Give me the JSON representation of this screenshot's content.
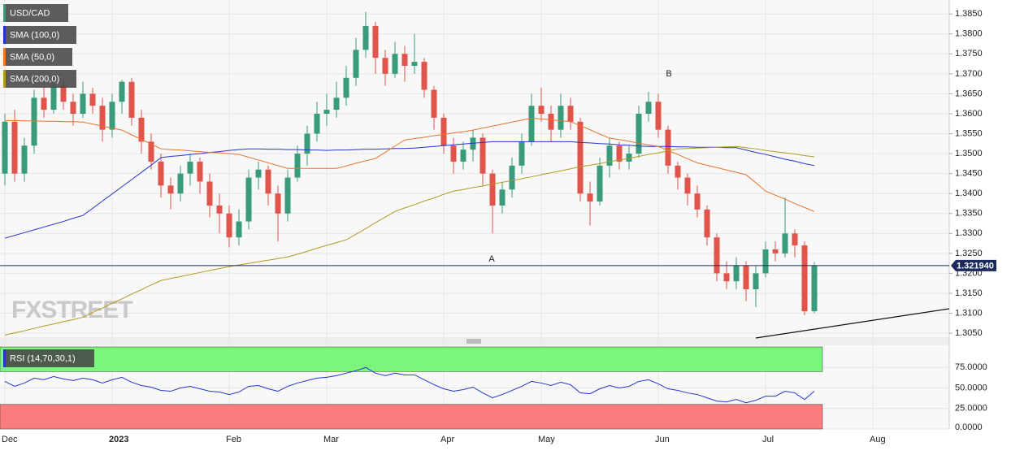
{
  "chart_data": {
    "type": "candlestick",
    "title": "USD/CAD",
    "watermark": "FXSTREET",
    "annotations": [
      "A",
      "B"
    ],
    "up_color": "#3a9a7c",
    "down_color": "#e0544c",
    "categories": [
      "Dec",
      null,
      null,
      null,
      null,
      null,
      null,
      null,
      null,
      null,
      null,
      "2023",
      null,
      null,
      null,
      null,
      null,
      null,
      null,
      null,
      null,
      null,
      null,
      "Feb",
      null,
      null,
      null,
      null,
      null,
      null,
      null,
      null,
      null,
      "Mar",
      null,
      null,
      null,
      null,
      null,
      null,
      null,
      null,
      null,
      null,
      null,
      "Apr",
      null,
      null,
      null,
      null,
      null,
      null,
      null,
      null,
      null,
      "May",
      null,
      null,
      null,
      null,
      null,
      null,
      null,
      null,
      null,
      null,
      null,
      "Jun",
      null,
      null,
      null,
      null,
      null,
      null,
      null,
      null,
      null,
      null,
      "Jul",
      null,
      null,
      null,
      null,
      null,
      null,
      null,
      null,
      null,
      null,
      "Aug",
      null,
      null,
      null,
      null,
      null,
      null,
      null
    ],
    "open": [
      1.345,
      1.358,
      1.345,
      1.352,
      1.364,
      1.361,
      1.367,
      1.363,
      1.36,
      1.365,
      1.362,
      1.356,
      1.363,
      1.368,
      1.359,
      1.353,
      1.348,
      1.342,
      1.34,
      1.345,
      1.348,
      1.343,
      1.337,
      1.335,
      1.329,
      1.333,
      1.344,
      1.346,
      1.34,
      1.335,
      1.344,
      1.35,
      1.355,
      1.36,
      1.361,
      1.364,
      1.369,
      1.376,
      1.382,
      1.374,
      1.37,
      1.375,
      1.372,
      1.373,
      1.366,
      1.359,
      1.352,
      1.348,
      1.351,
      1.354,
      1.345,
      1.337,
      1.341,
      1.347,
      1.353,
      1.362,
      1.36,
      1.356,
      1.362,
      1.358,
      1.34,
      1.338,
      1.347,
      1.352,
      1.348,
      1.35,
      1.36,
      1.363,
      1.356,
      1.347,
      1.344,
      1.34,
      1.336,
      1.329,
      1.32,
      1.318,
      1.322,
      1.316,
      1.32,
      1.326,
      1.325,
      1.33,
      1.327,
      1.3105,
      null,
      null,
      null,
      null,
      null,
      null,
      null,
      null,
      null,
      null,
      null,
      null,
      null
    ],
    "high": [
      1.36,
      1.361,
      1.354,
      1.366,
      1.3665,
      1.369,
      1.3685,
      1.365,
      1.368,
      1.3665,
      1.364,
      1.365,
      1.3685,
      1.369,
      1.361,
      1.355,
      1.35,
      1.344,
      1.347,
      1.35,
      1.349,
      1.345,
      1.34,
      1.337,
      1.336,
      1.346,
      1.348,
      1.347,
      1.342,
      1.346,
      1.352,
      1.357,
      1.363,
      1.365,
      1.368,
      1.372,
      1.379,
      1.3855,
      1.383,
      1.376,
      1.378,
      1.377,
      1.38,
      1.374,
      1.367,
      1.36,
      1.354,
      1.353,
      1.356,
      1.355,
      1.346,
      1.343,
      1.349,
      1.355,
      1.365,
      1.3665,
      1.362,
      1.365,
      1.364,
      1.359,
      1.343,
      1.349,
      1.354,
      1.353,
      1.352,
      1.362,
      1.3655,
      1.365,
      1.357,
      1.348,
      1.345,
      1.342,
      1.337,
      1.33,
      1.323,
      1.324,
      1.323,
      1.322,
      1.328,
      1.328,
      1.339,
      1.331,
      1.328,
      1.3228,
      null,
      null,
      null,
      null,
      null,
      null,
      null,
      null,
      null,
      null,
      null,
      null,
      null
    ],
    "low": [
      1.342,
      1.343,
      1.343,
      1.35,
      1.359,
      1.36,
      1.361,
      1.357,
      1.359,
      1.36,
      1.353,
      1.354,
      1.36,
      1.357,
      1.35,
      1.346,
      1.339,
      1.336,
      1.338,
      1.342,
      1.34,
      1.334,
      1.33,
      1.3265,
      1.327,
      1.331,
      1.341,
      1.337,
      1.328,
      1.333,
      1.343,
      1.347,
      1.353,
      1.357,
      1.359,
      1.362,
      1.367,
      1.374,
      1.37,
      1.367,
      1.369,
      1.368,
      1.37,
      1.364,
      1.356,
      1.35,
      1.345,
      1.346,
      1.348,
      1.342,
      1.33,
      1.335,
      1.339,
      1.345,
      1.352,
      1.358,
      1.353,
      1.354,
      1.356,
      1.338,
      1.332,
      1.337,
      1.344,
      1.346,
      1.346,
      1.349,
      1.358,
      1.354,
      1.345,
      1.341,
      1.337,
      1.334,
      1.327,
      1.318,
      1.316,
      1.316,
      1.313,
      1.3115,
      1.319,
      1.323,
      1.324,
      1.324,
      1.3095,
      1.31,
      null,
      null,
      null,
      null,
      null,
      null,
      null,
      null,
      null,
      null,
      null,
      null,
      null
    ],
    "close": [
      1.358,
      1.345,
      1.352,
      1.364,
      1.361,
      1.367,
      1.363,
      1.36,
      1.365,
      1.362,
      1.356,
      1.363,
      1.368,
      1.359,
      1.353,
      1.348,
      1.342,
      1.34,
      1.345,
      1.348,
      1.343,
      1.337,
      1.335,
      1.329,
      1.333,
      1.344,
      1.346,
      1.34,
      1.335,
      1.344,
      1.35,
      1.355,
      1.36,
      1.361,
      1.364,
      1.369,
      1.376,
      1.382,
      1.374,
      1.37,
      1.375,
      1.372,
      1.373,
      1.366,
      1.359,
      1.352,
      1.348,
      1.351,
      1.354,
      1.345,
      1.337,
      1.341,
      1.347,
      1.353,
      1.362,
      1.36,
      1.356,
      1.362,
      1.358,
      1.34,
      1.338,
      1.347,
      1.352,
      1.348,
      1.35,
      1.36,
      1.363,
      1.356,
      1.347,
      1.344,
      1.34,
      1.336,
      1.329,
      1.32,
      1.318,
      1.322,
      1.316,
      1.32,
      1.326,
      1.325,
      1.33,
      1.327,
      1.3105,
      1.3219,
      null,
      null,
      null,
      null,
      null,
      null,
      null,
      null,
      null,
      null,
      null,
      null,
      null
    ],
    "series": [
      {
        "name": "SMA (100,0)",
        "color": "#2336c8",
        "values": [
          1.3288,
          1.3295,
          1.3302,
          1.3309,
          1.3316,
          1.3323,
          1.333,
          1.3338,
          1.3345,
          1.3363,
          1.3381,
          1.3399,
          1.3417,
          1.3435,
          1.3453,
          1.3471,
          1.349,
          1.3493,
          1.3495,
          1.3498,
          1.35,
          1.3503,
          1.3505,
          1.3508,
          1.351,
          1.3512,
          1.3512,
          1.3511,
          1.3511,
          1.351,
          1.351,
          1.3509,
          1.3509,
          1.3508,
          1.3509,
          1.3509,
          1.351,
          1.3511,
          1.3511,
          1.3512,
          1.3513,
          1.3513,
          1.3514,
          1.3516,
          1.3518,
          1.352,
          1.3522,
          1.3524,
          1.3526,
          1.3528,
          1.353,
          1.353,
          1.353,
          1.353,
          1.353,
          1.353,
          1.353,
          1.353,
          1.353,
          1.3528,
          1.3527,
          1.3525,
          1.3524,
          1.3522,
          1.3521,
          1.3519,
          1.3518,
          1.3518,
          1.3518,
          1.3517,
          1.3517,
          1.3516,
          1.3516,
          1.3516,
          1.3515,
          1.3515,
          1.3509,
          1.3503,
          1.3498,
          1.3492,
          1.3486,
          1.3481,
          1.3475,
          1.347,
          null,
          null,
          null,
          null,
          null,
          null,
          null,
          null,
          null,
          null,
          null,
          null,
          null
        ]
      },
      {
        "name": "SMA (50,0)",
        "color": "#e8742a",
        "values": [
          1.3583,
          1.3583,
          1.3582,
          1.3582,
          1.3581,
          1.3581,
          1.358,
          1.358,
          1.3579,
          1.3574,
          1.3569,
          1.3564,
          1.3559,
          1.3547,
          1.3536,
          1.3524,
          1.3512,
          1.351,
          1.3509,
          1.3507,
          1.3505,
          1.3503,
          1.3502,
          1.35,
          1.3498,
          1.3491,
          1.3484,
          1.3477,
          1.347,
          1.3463,
          1.3463,
          1.3463,
          1.3463,
          1.3463,
          1.3463,
          1.3469,
          1.3476,
          1.3482,
          1.3488,
          1.3503,
          1.3519,
          1.3534,
          1.3538,
          1.3541,
          1.3545,
          1.3548,
          1.3552,
          1.3555,
          1.3559,
          1.3564,
          1.3569,
          1.3574,
          1.3579,
          1.3584,
          1.3589,
          1.3587,
          1.3585,
          1.3582,
          1.358,
          1.357,
          1.356,
          1.3549,
          1.3539,
          1.3535,
          1.3531,
          1.3526,
          1.3522,
          1.3518,
          1.3508,
          1.3498,
          1.3487,
          1.3477,
          1.3471,
          1.3465,
          1.3459,
          1.3453,
          1.3447,
          1.3427,
          1.3406,
          1.3396,
          1.3386,
          1.3375,
          1.3365,
          1.3355,
          null,
          null,
          null,
          null,
          null,
          null,
          null,
          null,
          null,
          null,
          null,
          null,
          null
        ]
      },
      {
        "name": "SMA (200,0)",
        "color": "#b59a22",
        "values": [
          1.3045,
          1.3051,
          1.3056,
          1.3062,
          1.3068,
          1.3073,
          1.3079,
          1.3084,
          1.309,
          1.3102,
          1.3113,
          1.3125,
          1.3136,
          1.3148,
          1.3159,
          1.3171,
          1.3182,
          1.3187,
          1.3192,
          1.3197,
          1.3202,
          1.3207,
          1.3212,
          1.3217,
          1.3221,
          1.3225,
          1.3229,
          1.3233,
          1.3237,
          1.3241,
          1.3248,
          1.3255,
          1.3263,
          1.327,
          1.3277,
          1.3284,
          1.3298,
          1.3312,
          1.3327,
          1.3341,
          1.3355,
          1.3364,
          1.3372,
          1.3381,
          1.3389,
          1.3398,
          1.3406,
          1.341,
          1.3415,
          1.3419,
          1.3424,
          1.3428,
          1.3433,
          1.3437,
          1.3442,
          1.3447,
          1.3452,
          1.3457,
          1.3462,
          1.3467,
          1.3471,
          1.3475,
          1.348,
          1.3484,
          1.3488,
          1.3493,
          1.3498,
          1.3502,
          1.3507,
          1.3512,
          1.3513,
          1.3514,
          1.3515,
          1.3516,
          1.3517,
          1.3518,
          1.3515,
          1.3512,
          1.3508,
          1.3505,
          1.3502,
          1.3499,
          1.3495,
          1.3492,
          null,
          null,
          null,
          null,
          null,
          null,
          null,
          null,
          null,
          null,
          null,
          null,
          null
        ]
      }
    ],
    "ylim": [
      1.304,
      1.3885
    ],
    "yticks": [
      {
        "value": 1.305,
        "label": "1.3050"
      },
      {
        "value": 1.31,
        "label": "1.3100"
      },
      {
        "value": 1.315,
        "label": "1.3150"
      },
      {
        "value": 1.32,
        "label": "1.3200"
      },
      {
        "value": 1.325,
        "label": "1.3250"
      },
      {
        "value": 1.33,
        "label": "1.3300"
      },
      {
        "value": 1.335,
        "label": "1.3350"
      },
      {
        "value": 1.34,
        "label": "1.3400"
      },
      {
        "value": 1.345,
        "label": "1.3450"
      },
      {
        "value": 1.35,
        "label": "1.3500"
      },
      {
        "value": 1.355,
        "label": "1.3550"
      },
      {
        "value": 1.36,
        "label": "1.3600"
      },
      {
        "value": 1.365,
        "label": "1.3650"
      },
      {
        "value": 1.37,
        "label": "1.3700"
      },
      {
        "value": 1.375,
        "label": "1.3750"
      },
      {
        "value": 1.38,
        "label": "1.3800"
      },
      {
        "value": 1.385,
        "label": "1.3850"
      }
    ],
    "grid": true,
    "last": {
      "value": 1.32194,
      "label": "1.321940"
    },
    "rsi": {
      "title": "RSI (14,70,30,1)",
      "color": "#2336c8",
      "values": [
        58,
        52,
        56,
        62,
        60,
        64,
        61,
        59,
        62,
        60,
        56,
        60,
        63,
        57,
        53,
        51,
        47,
        46,
        50,
        52,
        49,
        46,
        45,
        42,
        45,
        52,
        53,
        49,
        46,
        52,
        56,
        59,
        62,
        63,
        65,
        68,
        71,
        75,
        68,
        65,
        68,
        66,
        66,
        60,
        54,
        49,
        46,
        48,
        51,
        44,
        38,
        42,
        47,
        52,
        58,
        56,
        53,
        57,
        54,
        44,
        43,
        49,
        53,
        50,
        52,
        58,
        60,
        55,
        49,
        47,
        44,
        42,
        38,
        34,
        33,
        36,
        32,
        35,
        40,
        40,
        46,
        44,
        36,
        46,
        null,
        null,
        null,
        null,
        null,
        null,
        null,
        null,
        null,
        null,
        null,
        null,
        null
      ],
      "ylim": [
        0,
        100
      ],
      "yticks": [
        {
          "value": 0,
          "label": "0.0000"
        },
        {
          "value": 25,
          "label": "25.0000"
        },
        {
          "value": 50,
          "label": "50.0000"
        },
        {
          "value": 75,
          "label": "75.0000"
        }
      ],
      "upper": 70,
      "lower": 30,
      "upper_color": "#7cf57c",
      "lower_color": "#fa7d7d"
    }
  }
}
